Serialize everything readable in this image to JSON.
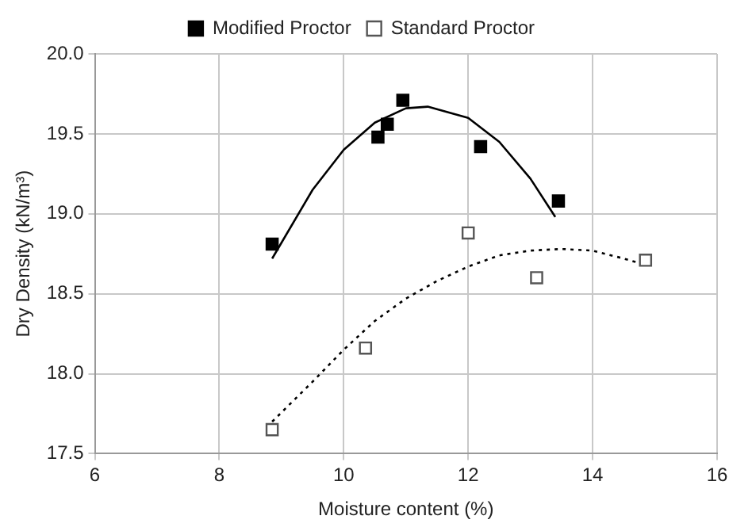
{
  "chart_data": {
    "type": "scatter",
    "xlabel": "Moisture content (%)",
    "ylabel": "Dry Density (kN/m³)",
    "xlim": [
      6,
      16
    ],
    "xticks": [
      6,
      8,
      10,
      12,
      14,
      16
    ],
    "ylim": [
      17.5,
      20
    ],
    "yticks": [
      {
        "value": 17.5,
        "label": "17.5"
      },
      {
        "value": 18,
        "label": "18.0"
      },
      {
        "value": 18.5,
        "label": "18.5"
      },
      {
        "value": 19,
        "label": "19.0"
      },
      {
        "value": 19.5,
        "label": "19.5"
      },
      {
        "value": 20,
        "label": "20.0"
      }
    ],
    "grid": true,
    "legend": "top",
    "series": [
      {
        "name": "Modified Proctor",
        "color": "#000000",
        "marker": "square",
        "x": [
          8.85,
          10.55,
          10.7,
          10.95,
          12.2,
          13.45
        ],
        "values": [
          18.81,
          19.48,
          19.56,
          19.71,
          19.42,
          19.08
        ]
      },
      {
        "name": "Standard Proctor",
        "color": "#555555",
        "marker": "square",
        "line_style": "dashed",
        "x": [
          8.85,
          10.35,
          12.0,
          13.1,
          14.85
        ],
        "values": [
          17.65,
          18.16,
          18.88,
          18.6,
          18.71
        ]
      },
      {
        "type": "line",
        "color": "#000000",
        "marker": "none",
        "line_style": "solid",
        "x": [
          8.85,
          9.5,
          10,
          10.5,
          11,
          11.35,
          12,
          12.5,
          13,
          13.4
        ],
        "values": [
          18.72,
          19.15,
          19.4,
          19.57,
          19.66,
          19.67,
          19.6,
          19.45,
          19.22,
          18.98
        ]
      },
      {
        "type": "line",
        "color": "#000000",
        "marker": "none",
        "line_style": "dotted",
        "x": [
          8.85,
          9.5,
          10,
          10.5,
          11,
          11.5,
          12,
          12.5,
          13,
          13.5,
          14,
          14.5,
          14.85
        ],
        "values": [
          17.7,
          17.95,
          18.15,
          18.33,
          18.47,
          18.58,
          18.67,
          18.74,
          18.77,
          18.78,
          18.77,
          18.72,
          18.68
        ]
      }
    ]
  }
}
